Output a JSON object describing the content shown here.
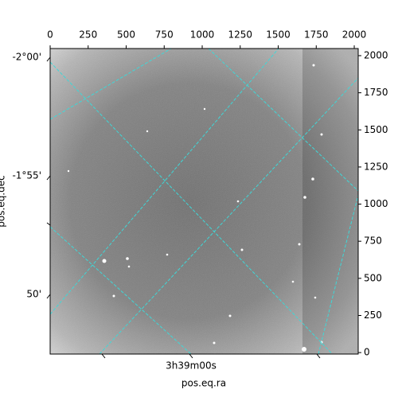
{
  "chart_data": {
    "type": "image",
    "xlabel": "pos.eq.ra",
    "ylabel": "pos.eq.dec",
    "xlim": [
      0,
      2026
    ],
    "ylim": [
      -10,
      2048
    ],
    "xticks": [
      0,
      250,
      500,
      750,
      1000,
      1250,
      1500,
      1750,
      2000
    ],
    "yticks": [
      0,
      250,
      500,
      750,
      1000,
      1250,
      1500,
      1750,
      2000
    ],
    "ra_tick_labels": [
      "3h39m00s"
    ],
    "dec_tick_labels": [
      "-2°00'",
      "-1°55'",
      "50'"
    ],
    "grid_color": "#3fd7d7"
  }
}
